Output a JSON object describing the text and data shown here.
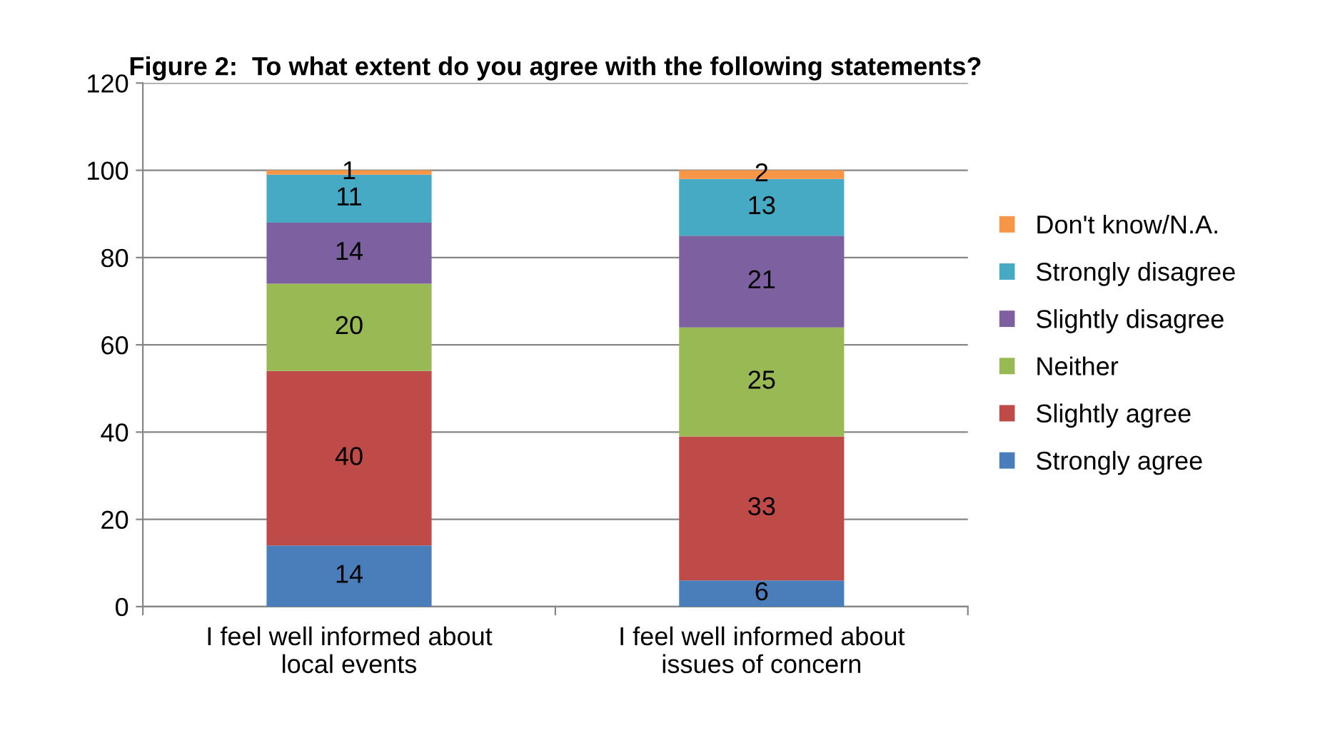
{
  "chart_data": {
    "type": "bar",
    "stacked": true,
    "title": "Figure 2:  To what extent do you agree with the following statements?",
    "categories": [
      "I feel well informed about local events",
      "I feel well informed about issues of concern"
    ],
    "series": [
      {
        "name": "Strongly agree",
        "color": "#4a7ebb",
        "values": [
          14,
          6
        ]
      },
      {
        "name": "Slightly agree",
        "color": "#be4b48",
        "values": [
          40,
          33
        ]
      },
      {
        "name": "Neither",
        "color": "#98b954",
        "values": [
          20,
          25
        ]
      },
      {
        "name": "Slightly disagree",
        "color": "#7d60a0",
        "values": [
          14,
          21
        ]
      },
      {
        "name": "Strongly disagree",
        "color": "#46aac5",
        "values": [
          11,
          13
        ]
      },
      {
        "name": "Don't know/N.A.",
        "color": "#f79646",
        "values": [
          1,
          2
        ]
      }
    ],
    "ylim": [
      0,
      120
    ],
    "yticks": [
      0,
      20,
      40,
      60,
      80,
      100,
      120
    ],
    "grid": "y",
    "legend": "right",
    "data_labels": true
  }
}
